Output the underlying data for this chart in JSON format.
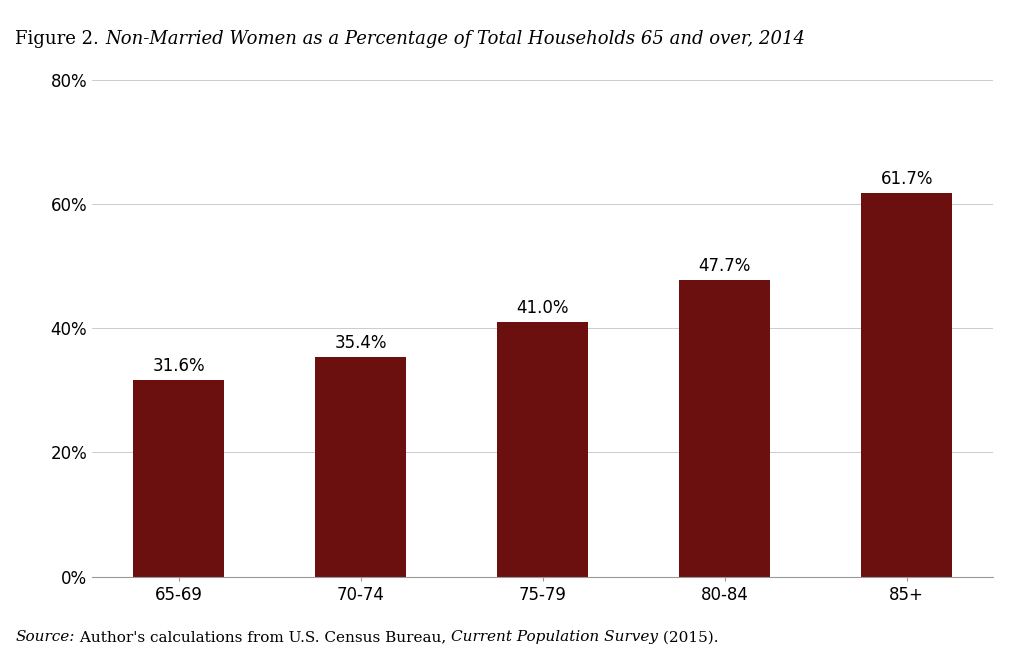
{
  "categories": [
    "65-69",
    "70-74",
    "75-79",
    "80-84",
    "85+"
  ],
  "values": [
    31.6,
    35.4,
    41.0,
    47.7,
    61.7
  ],
  "labels": [
    "31.6%",
    "35.4%",
    "41.0%",
    "47.7%",
    "61.7%"
  ],
  "bar_color": "#6B0F0F",
  "title_prefix": "Figure 2. ",
  "title_italic": "Non-Married Women as a Percentage of Total Households 65 and over, 2014",
  "ylim": [
    0,
    80
  ],
  "yticks": [
    0,
    20,
    40,
    60,
    80
  ],
  "ytick_labels": [
    "0%",
    "20%",
    "40%",
    "60%",
    "80%"
  ],
  "background_color": "#FFFFFF",
  "grid_color": "#CCCCCC",
  "label_fontsize": 12,
  "tick_fontsize": 12,
  "title_fontsize": 13,
  "source_fontsize": 11,
  "bar_width": 0.5
}
